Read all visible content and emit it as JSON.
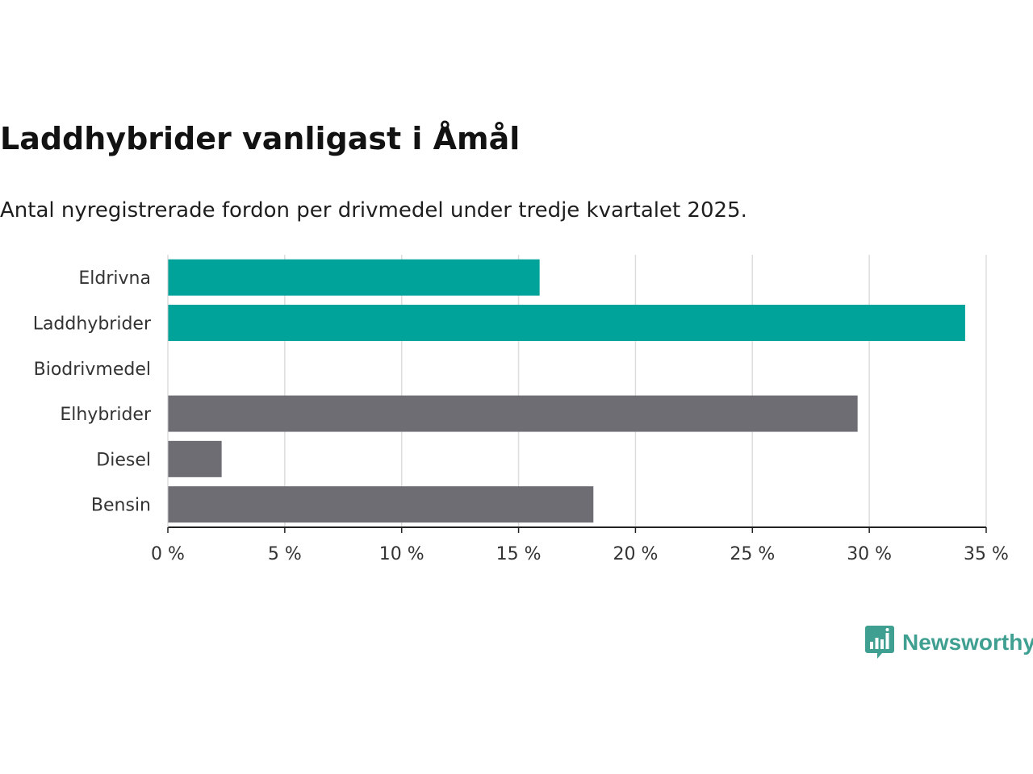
{
  "chart_data": {
    "type": "bar",
    "orientation": "horizontal",
    "title": "Laddhybrider vanligast i Åmål",
    "subtitle": "Antal nyregistrerade fordon per drivmedel under tredje kvartalet 2025.",
    "categories": [
      "Eldrivna",
      "Laddhybrider",
      "Biodrivmedel",
      "Elhybrider",
      "Diesel",
      "Bensin"
    ],
    "values": [
      15.9,
      34.1,
      0,
      29.5,
      2.3,
      18.2
    ],
    "bar_colors": [
      "#00a39a",
      "#00a39a",
      "#6e6d73",
      "#6e6d73",
      "#6e6d73",
      "#6e6d73"
    ],
    "xlim": [
      0,
      35
    ],
    "x_ticks": [
      0,
      5,
      10,
      15,
      20,
      25,
      30,
      35
    ],
    "x_tick_labels": [
      "0 %",
      "5 %",
      "10 %",
      "15 %",
      "20 %",
      "25 %",
      "30 %",
      "35 %"
    ],
    "xlabel": "",
    "ylabel": "",
    "grid": true,
    "legend": "none"
  },
  "branding": {
    "logo_text": "Newsworthy",
    "logo_icon": "newsworthy-chart-bubble-icon",
    "brand_color": "#3fa092"
  },
  "colors": {
    "accent": "#00a39a",
    "neutral": "#6e6d73",
    "grid": "#dddddd",
    "axis": "#222222"
  }
}
